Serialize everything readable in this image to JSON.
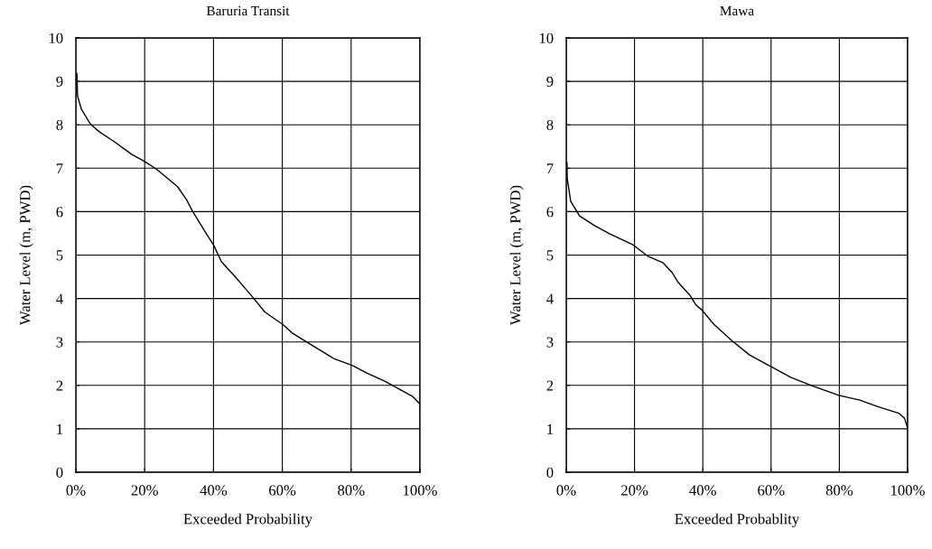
{
  "chart_data": [
    {
      "type": "line",
      "title": "Baruria Transit",
      "xlabel": "Exceeded Probability",
      "ylabel": "Water Level (m, PWD)",
      "xlim": [
        0,
        100
      ],
      "ylim": [
        0,
        10
      ],
      "xticks": [
        {
          "value": 0,
          "label": "0%"
        },
        {
          "value": 20,
          "label": "20%"
        },
        {
          "value": 40,
          "label": "40%"
        },
        {
          "value": 60,
          "label": "60%"
        },
        {
          "value": 80,
          "label": "80%"
        },
        {
          "value": 100,
          "label": "100%"
        }
      ],
      "yticks": [
        0,
        1,
        2,
        3,
        4,
        5,
        6,
        7,
        8,
        9,
        10
      ],
      "grid": true,
      "marker": "none",
      "line_style": "solid",
      "series": [
        {
          "color": "#000000",
          "x": [
            0.3,
            0.5,
            1.6,
            4.2,
            6.8,
            11.2,
            16.4,
            19.9,
            23.4,
            26.9,
            29.6,
            32.2,
            33.9,
            37.4,
            40.1,
            42.3,
            46.2,
            51.4,
            54.9,
            60.2,
            62.8,
            68.1,
            75.1,
            80.3,
            84.7,
            89.9,
            94.3,
            97.8,
            100
          ],
          "values": [
            9.18,
            8.66,
            8.36,
            8.02,
            7.84,
            7.61,
            7.31,
            7.16,
            6.98,
            6.75,
            6.57,
            6.27,
            6.01,
            5.56,
            5.22,
            4.85,
            4.51,
            4.03,
            3.69,
            3.4,
            3.21,
            2.95,
            2.61,
            2.46,
            2.28,
            2.09,
            1.9,
            1.75,
            1.57
          ]
        }
      ]
    },
    {
      "type": "line",
      "title": "Mawa",
      "xlabel": "Exceeded Probablity",
      "ylabel": "Water Level (m, PWD)",
      "xlim": [
        0,
        100
      ],
      "ylim": [
        0,
        10
      ],
      "xticks": [
        {
          "value": 0,
          "label": "0%"
        },
        {
          "value": 20,
          "label": "20%"
        },
        {
          "value": 40,
          "label": "40%"
        },
        {
          "value": 60,
          "label": "60%"
        },
        {
          "value": 80,
          "label": "80%"
        },
        {
          "value": 100,
          "label": "100%"
        }
      ],
      "yticks": [
        0,
        1,
        2,
        3,
        4,
        5,
        6,
        7,
        8,
        9,
        10
      ],
      "grid": true,
      "marker": "none",
      "line_style": "solid",
      "series": [
        {
          "color": "#000000",
          "x": [
            0.2,
            0.3,
            1.3,
            3.9,
            8.3,
            12.7,
            19.7,
            24.0,
            28.4,
            31.0,
            32.8,
            36.2,
            38.0,
            39.7,
            43.2,
            48.5,
            53.7,
            59.8,
            65.9,
            72.1,
            79.9,
            86.0,
            91.3,
            97.4,
            99.1,
            100
          ],
          "values": [
            7.13,
            6.76,
            6.24,
            5.9,
            5.68,
            5.49,
            5.23,
            4.97,
            4.82,
            4.6,
            4.37,
            4.08,
            3.85,
            3.74,
            3.41,
            3.03,
            2.7,
            2.44,
            2.18,
            1.99,
            1.77,
            1.66,
            1.51,
            1.36,
            1.24,
            1.02
          ]
        }
      ]
    }
  ]
}
